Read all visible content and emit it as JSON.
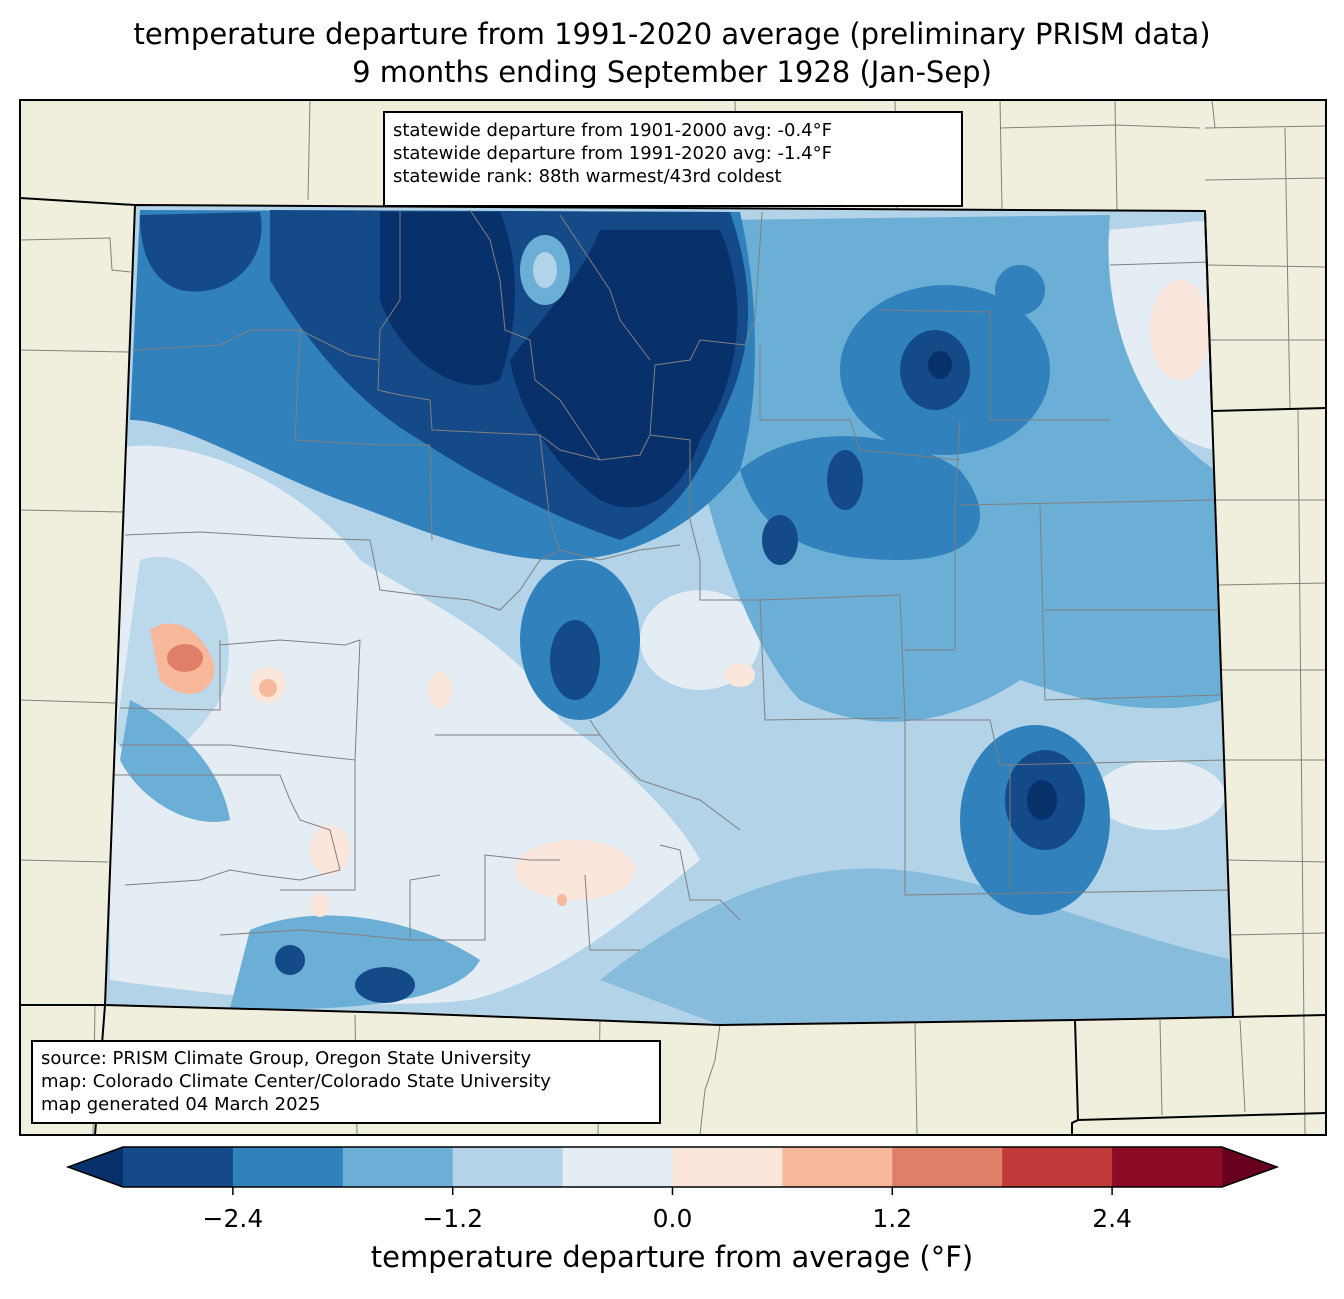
{
  "title": {
    "line1": "temperature departure from 1991-2020 average (preliminary PRISM data)",
    "line2": "9 months ending September 1928 (Jan-Sep)"
  },
  "stats": {
    "line1": "statewide departure from 1901-2000 avg: -0.4°F",
    "line2": "statewide departure from 1991-2020 avg: -1.4°F",
    "line3": "statewide rank: 88th warmest/43rd coldest"
  },
  "source": {
    "line1": "source: PRISM Climate Group, Oregon State University",
    "line2": "map: Colorado Climate Center/Colorado State University",
    "line3": "map generated 04 March 2025"
  },
  "colorbar": {
    "label": "temperature departure from average (°F)",
    "ticks": [
      "−2.4",
      "−1.2",
      "0.0",
      "1.2",
      "2.4"
    ],
    "tick_values": [
      -2.4,
      -1.2,
      0.0,
      1.2,
      2.4
    ],
    "range": [
      -3.0,
      3.0
    ],
    "step": 0.6,
    "colors": [
      "#08306b",
      "#144a87",
      "#3181bd",
      "#6baed6",
      "#b2d3e8",
      "#e4ecf4",
      "#fbe6dc",
      "#f7b89c",
      "#e07f68",
      "#c03a3a",
      "#8b0a26",
      "#67001f"
    ]
  },
  "map_colors": {
    "land": "#f0efdd",
    "state_border": "#000000",
    "county_border": "#808080"
  }
}
